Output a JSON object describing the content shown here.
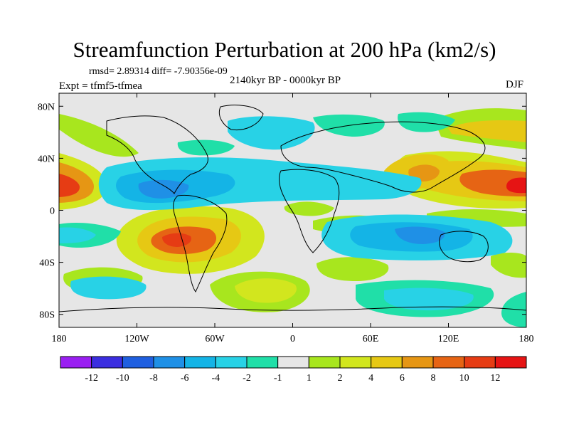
{
  "chart_data": {
    "type": "heatmap",
    "title": "Streamfunction Perturbation at 200 hPa (km2/s)",
    "stats": "rmsd= 2.89314 diff= -7.90356e-09",
    "experiment": "Expt = tfmf5-tfmea",
    "period": "2140kyr BP - 0000kyr BP",
    "season": "DJF",
    "xlim": [
      -180,
      180
    ],
    "ylim": [
      -90,
      90
    ],
    "x_ticks": [
      {
        "value": -180,
        "label": "180"
      },
      {
        "value": -120,
        "label": "120W"
      },
      {
        "value": -60,
        "label": "60W"
      },
      {
        "value": 0,
        "label": "0"
      },
      {
        "value": 60,
        "label": "60E"
      },
      {
        "value": 120,
        "label": "120E"
      },
      {
        "value": 180,
        "label": "180"
      }
    ],
    "y_ticks": [
      {
        "value": 80,
        "label": "80N"
      },
      {
        "value": 40,
        "label": "40N"
      },
      {
        "value": 0,
        "label": "0"
      },
      {
        "value": -40,
        "label": "40S"
      },
      {
        "value": -80,
        "label": "80S"
      }
    ],
    "colorbar": {
      "levels": [
        "-12",
        "-10",
        "-8",
        "-6",
        "-4",
        "-2",
        "-1",
        "1",
        "2",
        "4",
        "6",
        "8",
        "10",
        "12"
      ],
      "colors": [
        "#9a1ff2",
        "#3b2ee0",
        "#1f5fe0",
        "#1f90e6",
        "#14b4e6",
        "#28d2e6",
        "#20dfa8",
        "#e6e6e6",
        "#a8e61e",
        "#d2e61e",
        "#e6c814",
        "#e69614",
        "#e66414",
        "#e63c14",
        "#e61414"
      ]
    },
    "features": [
      {
        "name": "north pacific high",
        "lon": -172,
        "lat": 20,
        "peak": 10
      },
      {
        "name": "west pacific high",
        "lon": 172,
        "lat": 20,
        "peak": 10
      },
      {
        "name": "south america high",
        "lon": -92,
        "lat": -20,
        "peak": 10
      },
      {
        "name": "subtropical atlantic low",
        "lon": -60,
        "lat": 18,
        "peak": -5
      },
      {
        "name": "indian ocean low",
        "lon": 90,
        "lat": -15,
        "peak": -4
      }
    ]
  }
}
